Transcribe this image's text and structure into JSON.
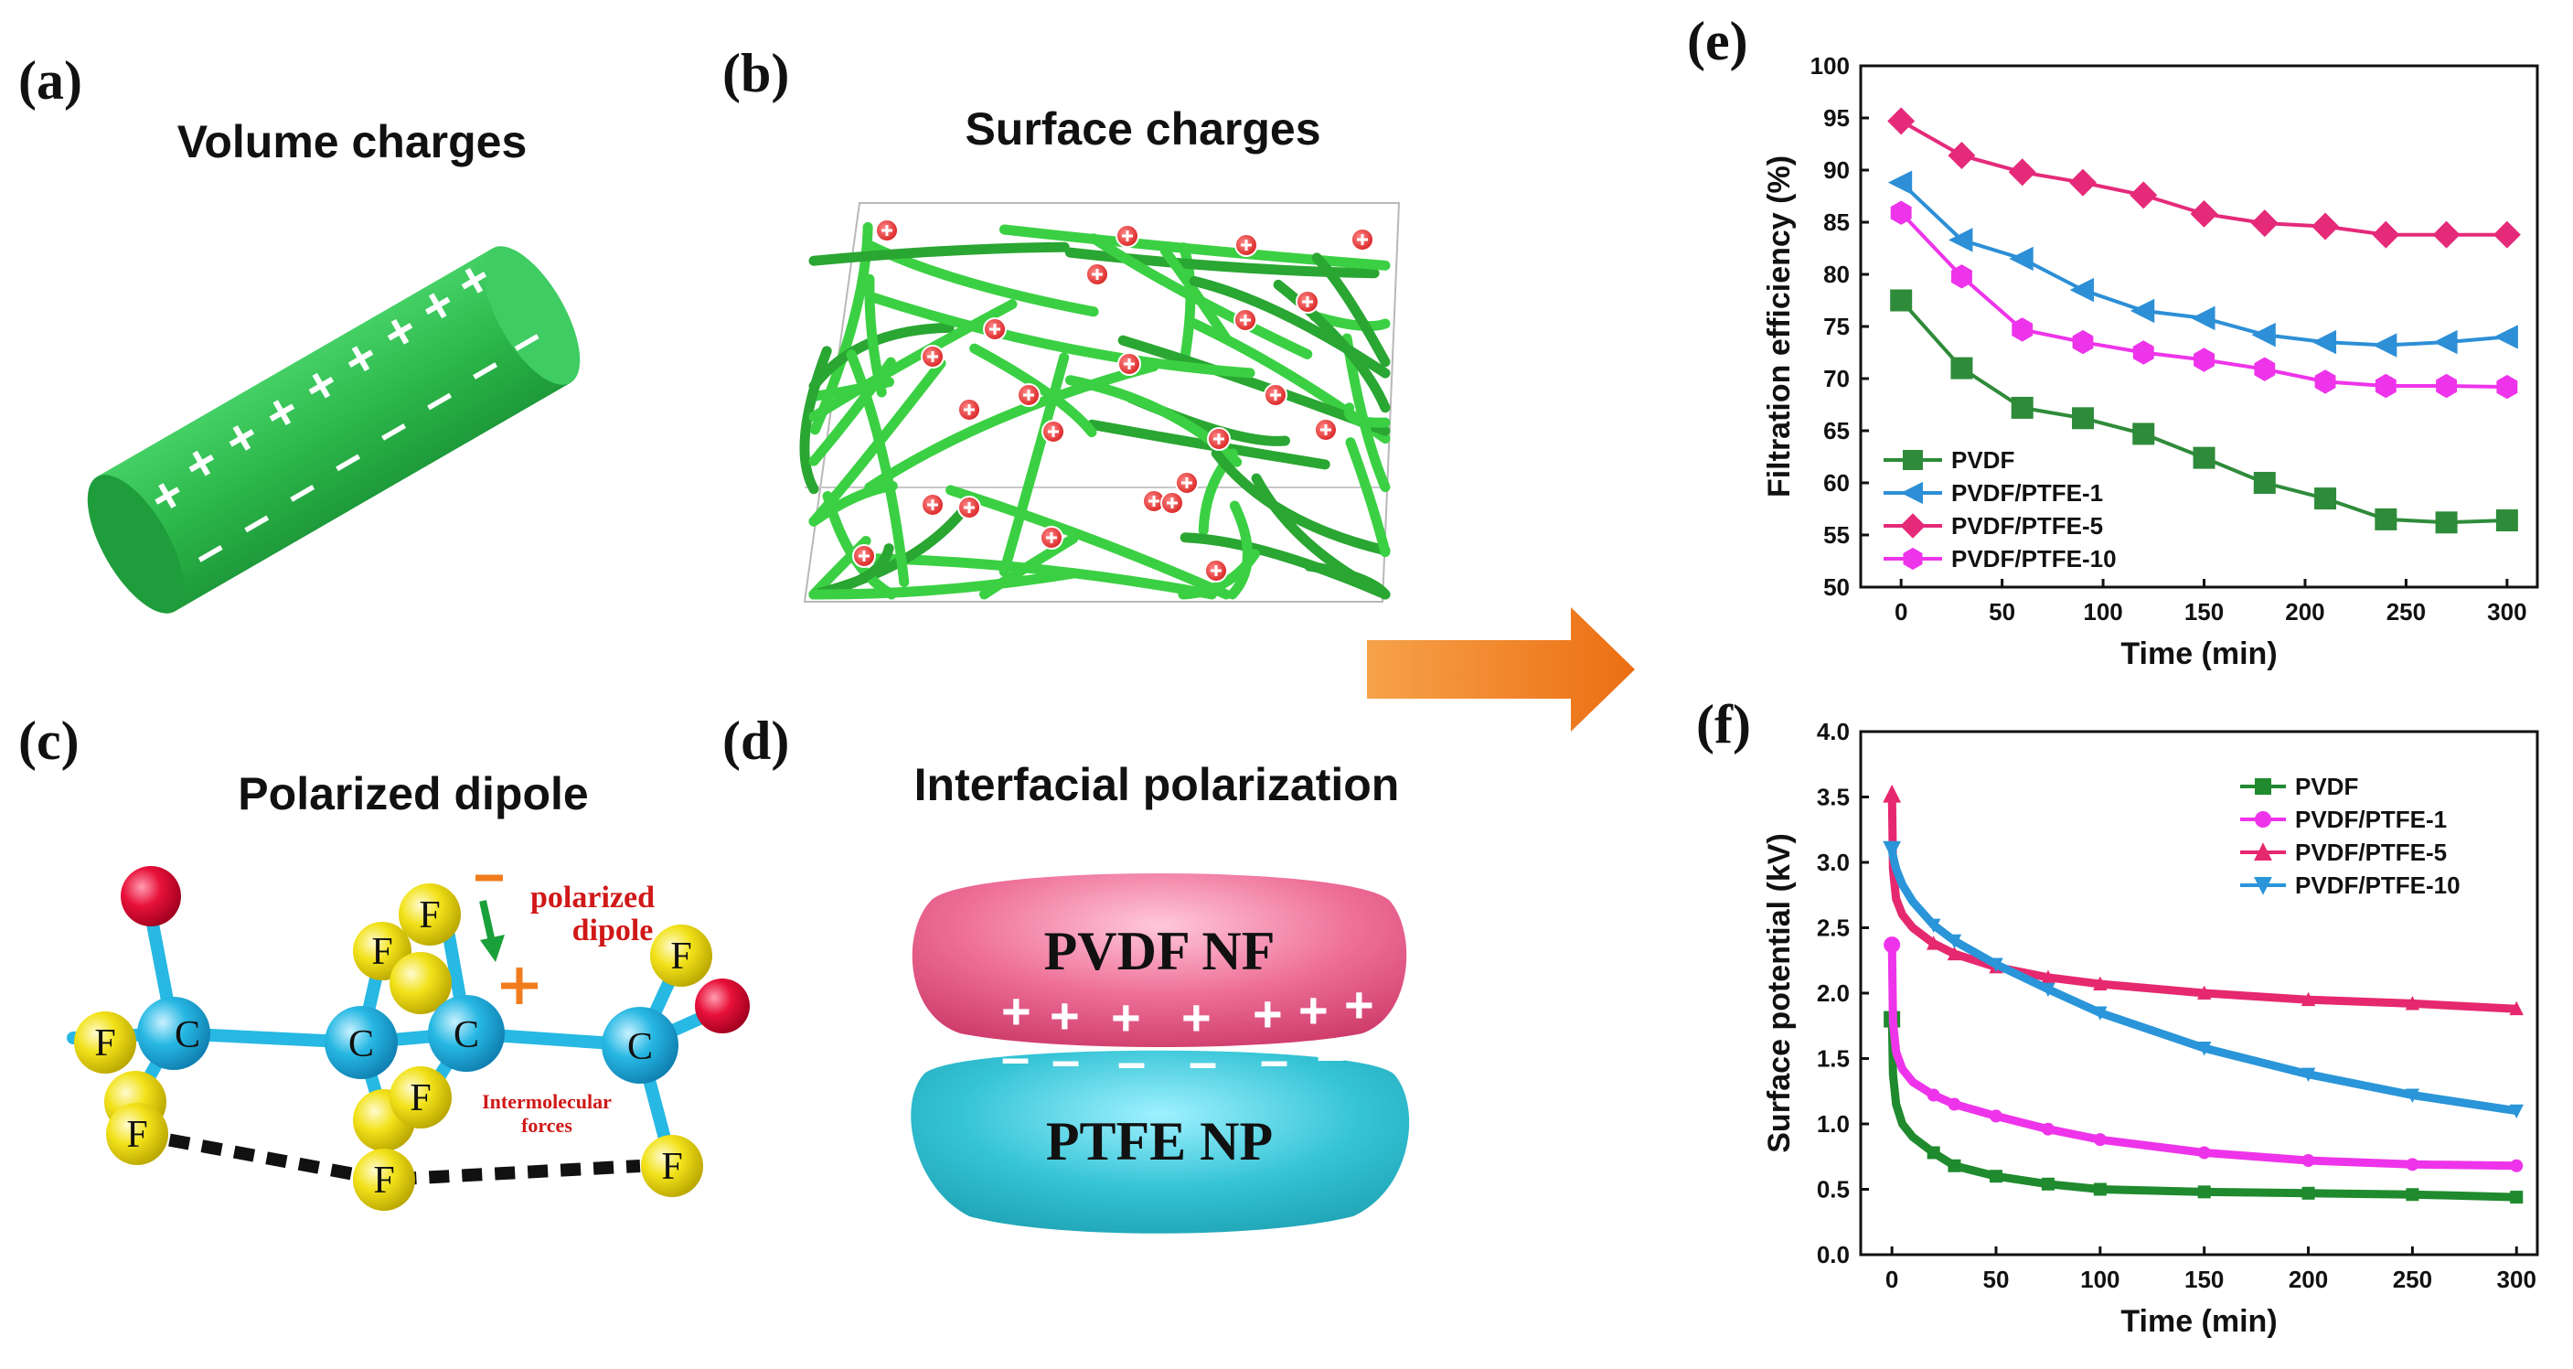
{
  "panels": {
    "a": {
      "label": "(a)",
      "title": "Volume charges"
    },
    "b": {
      "label": "(b)",
      "title": "Surface charges"
    },
    "c": {
      "label": "(c)",
      "title": "Polarized dipole",
      "atom_c": "C",
      "atom_f": "F",
      "note_polarized": "polarized",
      "note_dipole": "dipole",
      "note_inter1": "Intermolecular",
      "note_inter2": "forces"
    },
    "d": {
      "label": "(d)",
      "title": "Interfacial polarization",
      "top": "PVDF NF",
      "bottom": "PTFE NP"
    },
    "e": {
      "label": "(e)"
    },
    "f": {
      "label": "(f)"
    }
  },
  "colors": {
    "fiber_green": "#28b84a",
    "arrow_orange": "#f07c1e",
    "carbon_blue": "#27b8e3",
    "fluorine_yellow": "#f2e21a",
    "oxygen_red": "#e8113a",
    "pvdf_pink": "#e8507a",
    "ptfe_cyan": "#2cc0d0"
  },
  "chart_data": [
    {
      "type": "line",
      "xlabel": "Time (min)",
      "ylabel": "Filtration efficiency (%)",
      "xlim": [
        -20,
        315
      ],
      "ylim": [
        50,
        100
      ],
      "xticks": [
        0,
        50,
        100,
        150,
        200,
        250,
        300
      ],
      "yticks": [
        50,
        55,
        60,
        65,
        70,
        75,
        80,
        85,
        90,
        95,
        100
      ],
      "legend_position": "bottom-left",
      "x": [
        0,
        30,
        60,
        90,
        120,
        150,
        180,
        210,
        240,
        270,
        300
      ],
      "series": [
        {
          "name": "PVDF",
          "marker": "square",
          "color": "#2e8b3a",
          "values": [
            77.5,
            71.0,
            67.2,
            66.2,
            64.7,
            62.4,
            60.0,
            58.5,
            56.5,
            56.2,
            56.4
          ]
        },
        {
          "name": "PVDF/PTFE-1",
          "marker": "triangle-left",
          "color": "#2d8fd6",
          "values": [
            88.8,
            83.3,
            81.5,
            78.5,
            76.5,
            75.8,
            74.2,
            73.5,
            73.2,
            73.5,
            74.0
          ]
        },
        {
          "name": "PVDF/PTFE-5",
          "marker": "diamond",
          "color": "#e52a7a",
          "values": [
            94.7,
            91.4,
            89.8,
            88.8,
            87.6,
            85.8,
            84.9,
            84.6,
            83.8,
            83.8,
            83.8
          ]
        },
        {
          "name": "PVDF/PTFE-10",
          "marker": "hexagon",
          "color": "#ee34ea",
          "values": [
            85.9,
            79.8,
            74.7,
            73.5,
            72.5,
            71.8,
            70.9,
            69.7,
            69.3,
            69.3,
            69.2
          ]
        }
      ]
    },
    {
      "type": "line",
      "xlabel": "Time (min)",
      "ylabel": "Surface potential (kV)",
      "xlim": [
        -15,
        310
      ],
      "ylim": [
        0,
        4
      ],
      "xticks": [
        0,
        50,
        100,
        150,
        200,
        250,
        300
      ],
      "yticks": [
        0.0,
        0.5,
        1.0,
        1.5,
        2.0,
        2.5,
        3.0,
        3.5,
        4.0
      ],
      "legend_position": "top-right",
      "series": [
        {
          "name": "PVDF",
          "marker": "square",
          "color": "#1f8a2e",
          "x": [
            0,
            0.5,
            2,
            5,
            10,
            20,
            30,
            50,
            75,
            100,
            150,
            200,
            250,
            300
          ],
          "values": [
            1.8,
            1.38,
            1.15,
            1.0,
            0.9,
            0.78,
            0.68,
            0.6,
            0.54,
            0.5,
            0.48,
            0.47,
            0.46,
            0.44
          ]
        },
        {
          "name": "PVDF/PTFE-1",
          "marker": "circle",
          "color": "#ee34ea",
          "x": [
            0,
            0.5,
            2,
            5,
            10,
            20,
            30,
            50,
            75,
            100,
            150,
            200,
            250,
            300
          ],
          "values": [
            2.37,
            1.78,
            1.55,
            1.42,
            1.32,
            1.22,
            1.15,
            1.06,
            0.96,
            0.88,
            0.78,
            0.72,
            0.69,
            0.68
          ]
        },
        {
          "name": "PVDF/PTFE-5",
          "marker": "triangle-up",
          "color": "#e6286e",
          "x": [
            0,
            0.5,
            2,
            5,
            10,
            20,
            30,
            50,
            75,
            100,
            150,
            200,
            250,
            300
          ],
          "values": [
            3.52,
            2.95,
            2.72,
            2.6,
            2.5,
            2.38,
            2.3,
            2.2,
            2.12,
            2.07,
            2.0,
            1.95,
            1.92,
            1.88
          ]
        },
        {
          "name": "PVDF/PTFE-10",
          "marker": "triangle-down",
          "color": "#2a95d8",
          "x": [
            0,
            0.5,
            2,
            5,
            10,
            20,
            30,
            50,
            75,
            100,
            150,
            200,
            250,
            300
          ],
          "values": [
            3.1,
            3.05,
            2.95,
            2.83,
            2.7,
            2.52,
            2.4,
            2.22,
            2.03,
            1.85,
            1.58,
            1.38,
            1.22,
            1.1
          ]
        }
      ]
    }
  ]
}
